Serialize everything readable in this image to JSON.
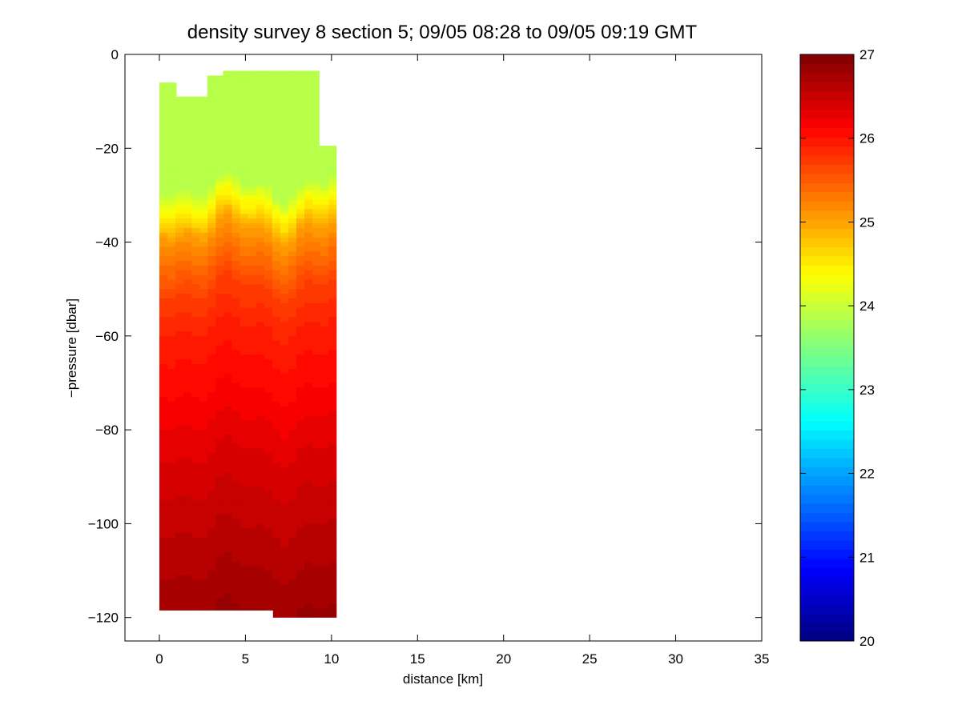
{
  "chart_data": {
    "type": "heatmap",
    "title": "density survey 8 section 5; 09/05 08:28 to 09/05 09:19 GMT",
    "xlabel": "distance [km]",
    "ylabel": "−pressure [dbar]",
    "xlim": [
      -2,
      35
    ],
    "ylim": [
      -125,
      0
    ],
    "xticks": [
      0,
      5,
      10,
      15,
      20,
      25,
      30,
      35
    ],
    "yticks": [
      0,
      -20,
      -40,
      -60,
      -80,
      -100,
      -120
    ],
    "ytick_labels": [
      "0",
      "−20",
      "−40",
      "−60",
      "−80",
      "−100",
      "−120"
    ],
    "colorbar": {
      "colormap": "jet",
      "clim": [
        20,
        27
      ],
      "ticks": [
        20,
        21,
        22,
        23,
        24,
        25,
        26,
        27
      ]
    },
    "grid": false,
    "section_outline": [
      [
        0,
        -6
      ],
      [
        1,
        -6
      ],
      [
        1,
        -9
      ],
      [
        2.8,
        -9
      ],
      [
        2.8,
        -4.5
      ],
      [
        3.7,
        -4.5
      ],
      [
        3.7,
        -3.5
      ],
      [
        9.3,
        -3.5
      ],
      [
        9.3,
        -19.5
      ],
      [
        10.3,
        -19.5
      ],
      [
        10.3,
        -120
      ],
      [
        6.6,
        -120
      ],
      [
        6.6,
        -118.5
      ],
      [
        0,
        -118.5
      ]
    ],
    "density_profile": [
      {
        "depth": 0,
        "density": 23.9
      },
      {
        "depth": -28,
        "density": 23.9
      },
      {
        "depth": -31,
        "density": 24.3
      },
      {
        "depth": -34,
        "density": 24.6
      },
      {
        "depth": -37,
        "density": 25.0
      },
      {
        "depth": -42,
        "density": 25.3
      },
      {
        "depth": -50,
        "density": 25.7
      },
      {
        "depth": -60,
        "density": 25.95
      },
      {
        "depth": -70,
        "density": 26.1
      },
      {
        "depth": -85,
        "density": 26.35
      },
      {
        "depth": -100,
        "density": 26.55
      },
      {
        "depth": -112,
        "density": 26.7
      },
      {
        "depth": -120,
        "density": 26.8
      }
    ]
  }
}
